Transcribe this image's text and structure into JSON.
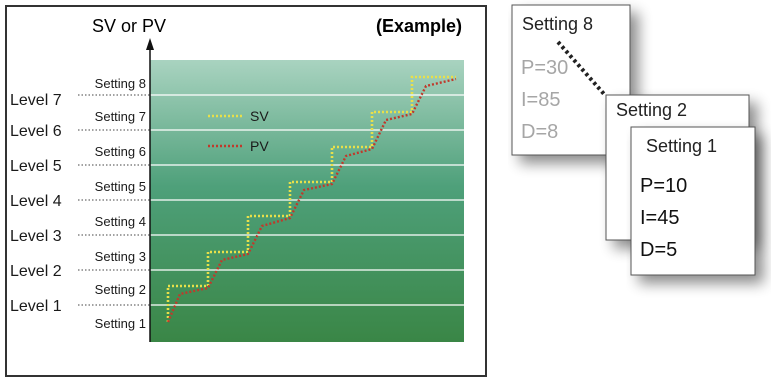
{
  "example_label": "(Example)",
  "yaxis_label": "SV or PV",
  "levels": [
    "Level 1",
    "Level 2",
    "Level 3",
    "Level 4",
    "Level 5",
    "Level 6",
    "Level 7"
  ],
  "settings": [
    "Setting 1",
    "Setting 2",
    "Setting 3",
    "Setting 4",
    "Setting 5",
    "Setting 6",
    "Setting 7",
    "Setting 8"
  ],
  "legend": [
    {
      "label": "SV",
      "color": "#e8e04a"
    },
    {
      "label": "PV",
      "color": "#c0392b"
    }
  ],
  "colors": {
    "band_bottom": "#3d8a4a",
    "band_top": "#a8d4bf",
    "sv_line": "#e8e04a",
    "pv_line": "#c0392b"
  },
  "cards": [
    {
      "title": "Setting 8",
      "p": "P=30",
      "i": "I=85",
      "d": "D=8"
    },
    {
      "title": "Setting 2"
    },
    {
      "title": "Setting 1",
      "p": "P=10",
      "i": "I=45",
      "d": "D=5"
    }
  ]
}
